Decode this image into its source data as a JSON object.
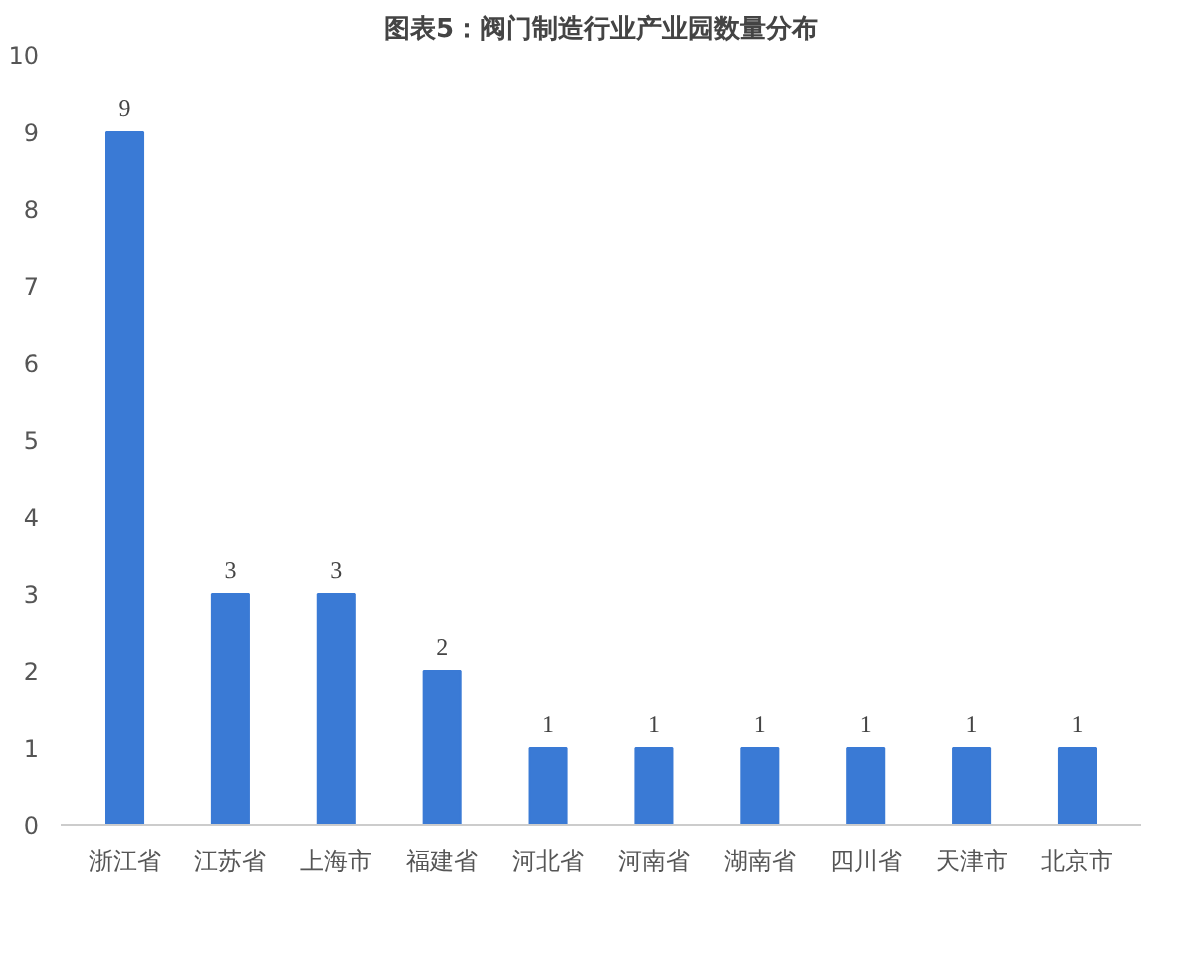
{
  "chart_data": {
    "type": "bar",
    "title": "图表5：阀门制造行业产业园数量分布",
    "categories": [
      "浙江省",
      "江苏省",
      "上海市",
      "福建省",
      "河北省",
      "河南省",
      "湖南省",
      "四川省",
      "天津市",
      "北京市"
    ],
    "values": [
      9,
      3,
      3,
      2,
      1,
      1,
      1,
      1,
      1,
      1
    ],
    "color": "#3a7ad5",
    "ylim": [
      0,
      10
    ],
    "yticks": [
      0,
      1,
      2,
      3,
      4,
      5,
      6,
      7,
      8,
      9,
      10
    ],
    "data_labels": true
  }
}
